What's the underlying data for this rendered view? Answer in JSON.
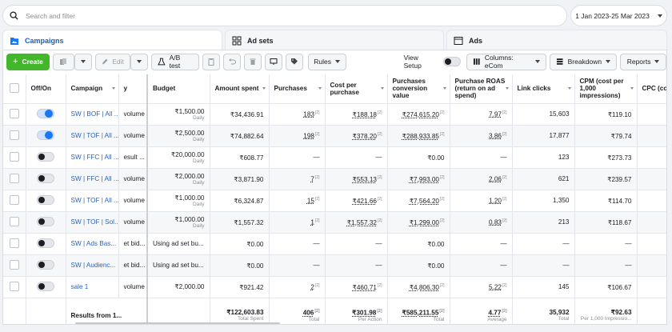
{
  "search": {
    "placeholder": "Search and filter"
  },
  "date_range": "1 Jan 2023-25 Mar 2023",
  "tabs": [
    {
      "label": "Campaigns",
      "active": true,
      "icon": "folder-icon"
    },
    {
      "label": "Ad sets",
      "active": false,
      "icon": "grid-icon"
    },
    {
      "label": "Ads",
      "active": false,
      "icon": "ad-icon"
    }
  ],
  "toolbar": {
    "create": "Create",
    "edit": "Edit",
    "ab_test": "A/B test",
    "rules": "Rules",
    "view_setup": "View Setup",
    "columns": "Columns: eCom",
    "breakdown": "Breakdown",
    "reports": "Reports"
  },
  "columns": {
    "off_on": "Off/On",
    "campaign": "Campaign",
    "strategy": "y",
    "budget": "Budget",
    "amount_spent": "Amount spent",
    "purchases": "Purchases",
    "cost_per_purchase": "Cost per purchase",
    "purchases_conversion_value": "Purchases conversion value",
    "purchase_roas": "Purchase ROAS (return on ad spend)",
    "link_clicks": "Link clicks",
    "cpm": "CPM (cost per 1,000 impressions)",
    "cpc": "CPC (co link click"
  },
  "rows": [
    {
      "on": true,
      "campaign": "SW | BOF | All ...",
      "strategy": "volume",
      "budget": "₹1,500.00",
      "budget_sub": "Daily",
      "spent": "₹34,436.91",
      "purchases": "183",
      "cpp": "₹188.18",
      "conv_value": "₹274,615.20",
      "roas": "7.97",
      "clicks": "15,603",
      "cpm": "₹119.10"
    },
    {
      "on": true,
      "campaign": "SW | TOF | All ...",
      "strategy": "volume",
      "budget": "₹2,500.00",
      "budget_sub": "Daily",
      "spent": "₹74,882.64",
      "purchases": "198",
      "cpp": "₹378.20",
      "conv_value": "₹288,933.85",
      "roas": "3.86",
      "clicks": "17,877",
      "cpm": "₹79.74"
    },
    {
      "on": false,
      "campaign": "SW | FFC | All ...",
      "strategy": "esult ...",
      "budget": "₹20,000.00",
      "budget_sub": "Daily",
      "spent": "₹608.77",
      "purchases": "—",
      "cpp": "—",
      "conv_value": "₹0.00",
      "roas": "—",
      "clicks": "123",
      "cpm": "₹273.73"
    },
    {
      "on": false,
      "campaign": "SW | FFC | All ...",
      "strategy": "volume",
      "budget": "₹2,000.00",
      "budget_sub": "Daily",
      "spent": "₹3,871.90",
      "purchases": "7",
      "cpp": "₹553.13",
      "conv_value": "₹7,993.00",
      "roas": "2.06",
      "clicks": "621",
      "cpm": "₹239.57"
    },
    {
      "on": false,
      "campaign": "SW | TOF | All ...",
      "strategy": "volume",
      "budget": "₹1,000.00",
      "budget_sub": "Daily",
      "spent": "₹6,324.87",
      "purchases": "15",
      "cpp": "₹421.66",
      "conv_value": "₹7,564.20",
      "roas": "1.20",
      "clicks": "1,350",
      "cpm": "₹114.70"
    },
    {
      "on": false,
      "campaign": "SW | TOF | Sol...",
      "strategy": "volume",
      "budget": "₹1,000.00",
      "budget_sub": "Daily",
      "spent": "₹1,557.32",
      "purchases": "1",
      "cpp": "₹1,557.32",
      "conv_value": "₹1,299.00",
      "roas": "0.83",
      "clicks": "213",
      "cpm": "₹118.67"
    },
    {
      "on": false,
      "campaign": "SW | Ads Bas...",
      "strategy": "et bid...",
      "budget": "Using ad set bu...",
      "budget_sub": "",
      "spent": "₹0.00",
      "purchases": "—",
      "cpp": "—",
      "conv_value": "₹0.00",
      "roas": "—",
      "clicks": "—",
      "cpm": "—"
    },
    {
      "on": false,
      "campaign": "SW | Audienc...",
      "strategy": "et bid...",
      "budget": "Using ad set bu...",
      "budget_sub": "",
      "spent": "₹0.00",
      "purchases": "—",
      "cpp": "—",
      "conv_value": "₹0.00",
      "roas": "—",
      "clicks": "—",
      "cpm": "—"
    },
    {
      "on": false,
      "campaign": "sale 1",
      "strategy": "volume",
      "budget": "₹2,000.00",
      "budget_sub": "",
      "spent": "₹921.42",
      "purchases": "2",
      "cpp": "₹460.71",
      "conv_value": "₹4,806.30",
      "roas": "5.22",
      "clicks": "145",
      "cpm": "₹106.67"
    }
  ],
  "totals": {
    "label": "Results from 1...",
    "spent": "₹122,603.83",
    "spent_sub": "Total Spent",
    "purchases": "406",
    "purchases_sub": "Total",
    "cpp": "₹301.98",
    "cpp_sub": "Per Action",
    "conv_value": "₹585,211.55",
    "conv_value_sub": "Total",
    "roas": "4.77",
    "roas_sub": "Average",
    "clicks": "35,932",
    "clicks_sub": "Total",
    "cpm": "₹92.63",
    "cpm_sub": "Per 1,000 Impressio..."
  }
}
